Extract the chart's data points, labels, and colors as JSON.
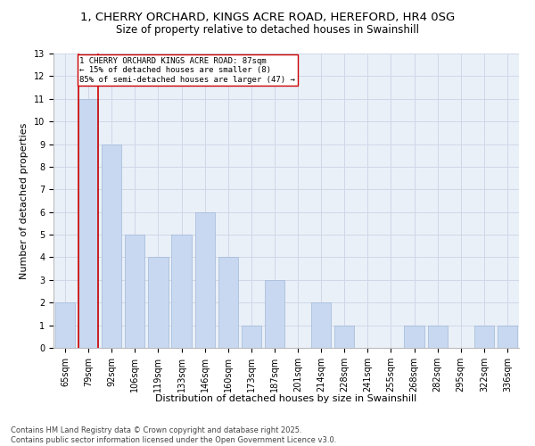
{
  "title_line1": "1, CHERRY ORCHARD, KINGS ACRE ROAD, HEREFORD, HR4 0SG",
  "title_line2": "Size of property relative to detached houses in Swainshill",
  "xlabel": "Distribution of detached houses by size in Swainshill",
  "ylabel": "Number of detached properties",
  "categories": [
    "65sqm",
    "79sqm",
    "92sqm",
    "106sqm",
    "119sqm",
    "133sqm",
    "146sqm",
    "160sqm",
    "173sqm",
    "187sqm",
    "201sqm",
    "214sqm",
    "228sqm",
    "241sqm",
    "255sqm",
    "268sqm",
    "282sqm",
    "295sqm",
    "322sqm",
    "336sqm"
  ],
  "values": [
    2,
    11,
    9,
    5,
    4,
    5,
    6,
    4,
    1,
    3,
    0,
    2,
    1,
    0,
    0,
    1,
    1,
    0,
    1,
    1
  ],
  "bar_color": "#c8d8f0",
  "bar_edge_color": "#a0b8d8",
  "highlight_color": "#cc0000",
  "highlight_index": 1,
  "annotation_text": "1 CHERRY ORCHARD KINGS ACRE ROAD: 87sqm\n← 15% of detached houses are smaller (8)\n85% of semi-detached houses are larger (47) →",
  "ylim": [
    0,
    13
  ],
  "yticks": [
    0,
    1,
    2,
    3,
    4,
    5,
    6,
    7,
    8,
    9,
    10,
    11,
    12,
    13
  ],
  "grid_color": "#d0d8e8",
  "background_color": "#eaf0f8",
  "footer_line1": "Contains HM Land Registry data © Crown copyright and database right 2025.",
  "footer_line2": "Contains public sector information licensed under the Open Government Licence v3.0.",
  "title_fontsize": 9.5,
  "subtitle_fontsize": 8.5,
  "axis_label_fontsize": 8,
  "tick_fontsize": 7,
  "annotation_fontsize": 6.5,
  "footer_fontsize": 6
}
